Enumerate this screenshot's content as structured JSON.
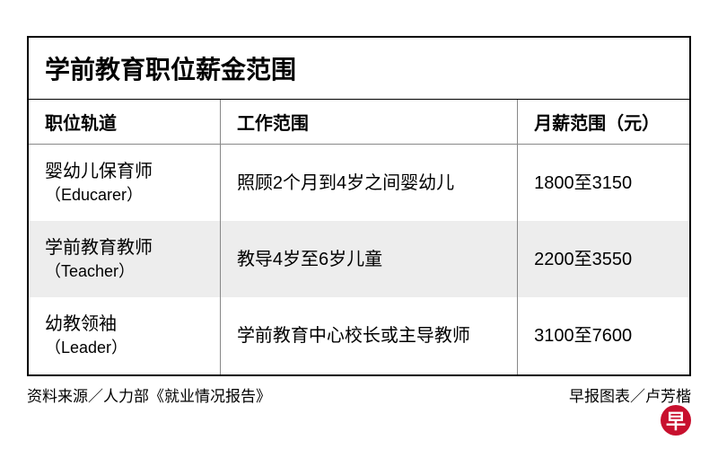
{
  "title": "学前教育职位薪金范围",
  "columns": [
    "职位轨道",
    "工作范围",
    "月薪范围（元）"
  ],
  "rows": [
    {
      "position_cn": "婴幼儿保育师",
      "position_en": "（Educarer）",
      "scope": "照顾2个月到4岁之间婴幼儿",
      "salary": "1800至3150",
      "alt": false
    },
    {
      "position_cn": "学前教育教师",
      "position_en": "（Teacher）",
      "scope": "教导4岁至6岁儿童",
      "salary": "2200至3550",
      "alt": true
    },
    {
      "position_cn": "幼教领袖",
      "position_en": "（Leader）",
      "scope": "学前教育中心校长或主导教师",
      "salary": "3100至7600",
      "alt": false
    }
  ],
  "source": "资料来源／人力部《就业情况报告》",
  "credit": "早报图表／卢芳楷",
  "logo_text": "早",
  "column_widths": [
    "29%",
    "45%",
    "26%"
  ],
  "colors": {
    "border": "#000000",
    "divider": "#888888",
    "alt_row": "#ededed",
    "logo_bg": "#c8102e",
    "logo_text": "#ffffff",
    "text": "#000000",
    "background": "#ffffff"
  },
  "typography": {
    "title_size": 28,
    "header_size": 20,
    "cell_size": 20,
    "subtitle_size": 18,
    "footer_size": 17
  }
}
